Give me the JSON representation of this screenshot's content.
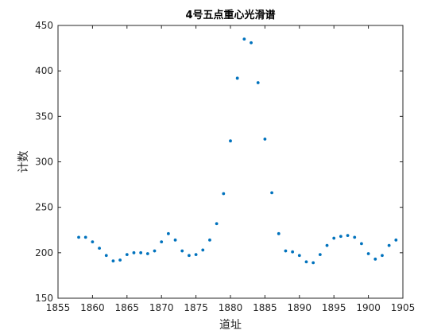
{
  "chart_data": {
    "type": "scatter",
    "title": "4号五点重心光滑谱",
    "xlabel": "道址",
    "ylabel": "计数",
    "xlim": [
      1855,
      1905
    ],
    "ylim": [
      150,
      450
    ],
    "xticks": [
      "1855",
      "1860",
      "1865",
      "1870",
      "1875",
      "1880",
      "1885",
      "1890",
      "1895",
      "1900",
      "1905"
    ],
    "yticks": [
      "150",
      "200",
      "250",
      "300",
      "350",
      "400",
      "450"
    ],
    "grid": false,
    "marker_color": "#0072BD",
    "x": [
      1858,
      1859,
      1860,
      1861,
      1862,
      1863,
      1864,
      1865,
      1866,
      1867,
      1868,
      1869,
      1870,
      1871,
      1872,
      1873,
      1874,
      1875,
      1876,
      1877,
      1878,
      1879,
      1880,
      1881,
      1882,
      1883,
      1884,
      1885,
      1886,
      1887,
      1888,
      1889,
      1890,
      1891,
      1892,
      1893,
      1894,
      1895,
      1896,
      1897,
      1898,
      1899,
      1900,
      1901,
      1902,
      1903,
      1904
    ],
    "y": [
      217,
      217,
      212,
      205,
      197,
      191,
      192,
      198,
      200,
      200,
      199,
      202,
      212,
      221,
      214,
      202,
      197,
      198,
      203,
      214,
      232,
      265,
      323,
      392,
      435,
      431,
      387,
      325,
      266,
      221,
      202,
      201,
      197,
      190,
      189,
      198,
      208,
      216,
      218,
      219,
      217,
      210,
      199,
      193,
      197,
      208,
      214
    ]
  }
}
